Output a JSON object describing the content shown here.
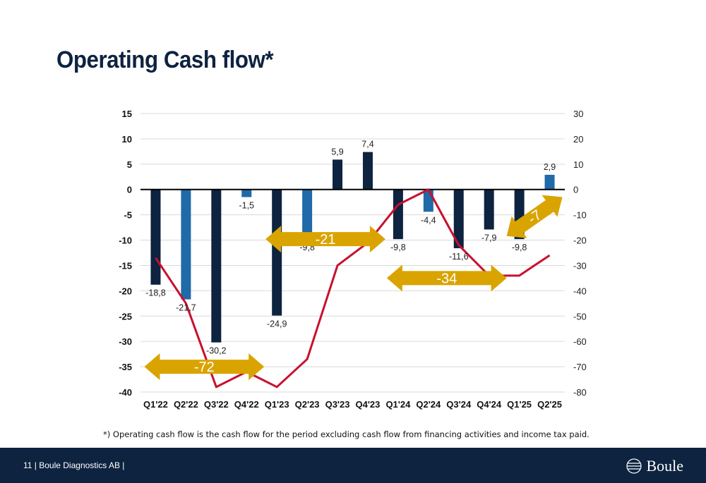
{
  "page": {
    "title": "Operating Cash flow*",
    "footnote": "*) Operating cash flow is the cash flow for the period excluding cash flow from financing activities and income tax paid.",
    "footer_text": "11 | Boule Diagnostics AB |",
    "logo_text": "Boule"
  },
  "colors": {
    "bar_dark": "#0d2340",
    "bar_blue": "#1f6aa8",
    "line": "#c8102e",
    "arrow": "#d9a400",
    "footer": "#0d2340"
  },
  "chart_data": {
    "type": "bar",
    "categories": [
      "Q1'22",
      "Q2'22",
      "Q3'22",
      "Q4'22",
      "Q1'23",
      "Q2'23",
      "Q3'23",
      "Q4'23",
      "Q1'24",
      "Q2'24",
      "Q3'24",
      "Q4'24",
      "Q1'25",
      "Q2'25"
    ],
    "series": [
      {
        "axis": "left",
        "type": "bar",
        "values": [
          -18.8,
          -21.7,
          -30.2,
          -1.5,
          -24.9,
          -9.8,
          5.9,
          7.4,
          -9.8,
          -4.4,
          -11.6,
          -7.9,
          -9.8,
          2.9
        ],
        "labels": [
          "-18,8",
          "-21,7",
          "-30,2",
          "-1,5",
          "-24,9",
          "-9,8",
          "5,9",
          "7,4",
          "-9,8",
          "-4,4",
          "-11,6",
          "-7,9",
          "-9,8",
          "2,9"
        ],
        "colors": [
          "dark",
          "blue",
          "dark",
          "blue",
          "dark",
          "blue",
          "dark",
          "dark",
          "dark",
          "blue",
          "dark",
          "dark",
          "dark",
          "blue"
        ]
      },
      {
        "axis": "right",
        "type": "line",
        "values": [
          -27,
          -45,
          -78,
          -72,
          -78,
          -67,
          -30,
          -21,
          -6,
          0,
          -22,
          -34,
          -34,
          -26
        ]
      }
    ],
    "left_axis": {
      "min": -40,
      "max": 15,
      "ticks": [
        "15",
        "10",
        "5",
        "0",
        "-5",
        "-10",
        "-15",
        "-20",
        "-25",
        "-30",
        "-35",
        "-40"
      ]
    },
    "right_axis": {
      "min": -80,
      "max": 30,
      "ticks": [
        "30",
        "20",
        "10",
        "0",
        "-10",
        "-20",
        "-30",
        "-40",
        "-50",
        "-60",
        "-70",
        "-80"
      ]
    },
    "annotations": [
      {
        "text": "-72",
        "from": 0,
        "to": 4,
        "y": -35
      },
      {
        "text": "-21",
        "from": 4,
        "to": 8,
        "y": -9.8
      },
      {
        "text": "-34",
        "from": 8,
        "to": 12,
        "y": -17.5
      },
      {
        "text": "-7",
        "from": 12,
        "to": 13,
        "y_from": -9.2,
        "y_to": -1.5
      }
    ]
  }
}
